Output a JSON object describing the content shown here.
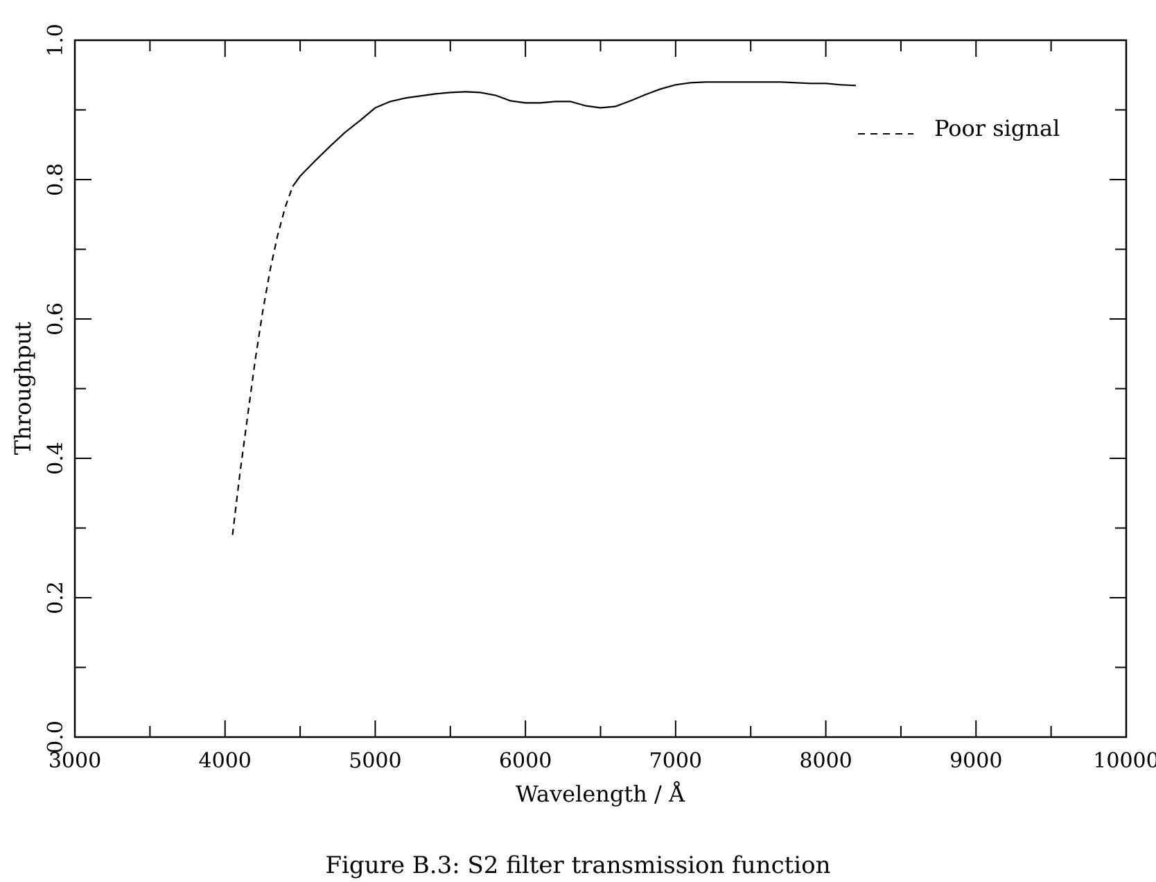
{
  "chart_data": {
    "type": "line",
    "title": "",
    "xlabel": "Wavelength / Å",
    "ylabel": "Throughput",
    "xlim": [
      3000,
      10000
    ],
    "ylim": [
      0.0,
      1.0
    ],
    "x_major_ticks": [
      3000,
      4000,
      5000,
      6000,
      7000,
      8000,
      9000,
      10000
    ],
    "x_minor_step": 500,
    "y_major_ticks": [
      0.0,
      0.2,
      0.4,
      0.6,
      0.8,
      1.0
    ],
    "y_minor_step": 0.1,
    "x_tick_labels": [
      "3000",
      "4000",
      "5000",
      "6000",
      "7000",
      "8000",
      "9000",
      "10000"
    ],
    "y_tick_labels": [
      "0.0",
      "0.2",
      "0.4",
      "0.6",
      "0.8",
      "1.0"
    ],
    "grid": false,
    "legend_position": "top-right",
    "series": [
      {
        "name": "Poor signal",
        "style": "dashed",
        "color": "#000000",
        "x": [
          4050,
          4100,
          4150,
          4200,
          4250,
          4300,
          4350,
          4400,
          4450
        ],
        "y": [
          0.29,
          0.38,
          0.46,
          0.54,
          0.61,
          0.67,
          0.72,
          0.76,
          0.79
        ]
      },
      {
        "style": "solid",
        "color": "#000000",
        "x": [
          4450,
          4500,
          4600,
          4700,
          4800,
          4900,
          5000,
          5100,
          5200,
          5300,
          5400,
          5500,
          5600,
          5700,
          5800,
          5900,
          6000,
          6100,
          6200,
          6300,
          6400,
          6500,
          6600,
          6700,
          6800,
          6900,
          7000,
          7100,
          7200,
          7300,
          7400,
          7500,
          7600,
          7700,
          7800,
          7900,
          8000,
          8100,
          8200
        ],
        "y": [
          0.79,
          0.805,
          0.827,
          0.848,
          0.868,
          0.885,
          0.903,
          0.912,
          0.917,
          0.92,
          0.923,
          0.925,
          0.926,
          0.925,
          0.921,
          0.913,
          0.91,
          0.91,
          0.912,
          0.912,
          0.906,
          0.903,
          0.905,
          0.913,
          0.922,
          0.93,
          0.936,
          0.939,
          0.94,
          0.94,
          0.94,
          0.94,
          0.94,
          0.94,
          0.939,
          0.938,
          0.938,
          0.936,
          0.935
        ]
      }
    ]
  },
  "caption": "Figure B.3: S2 filter transmission function"
}
